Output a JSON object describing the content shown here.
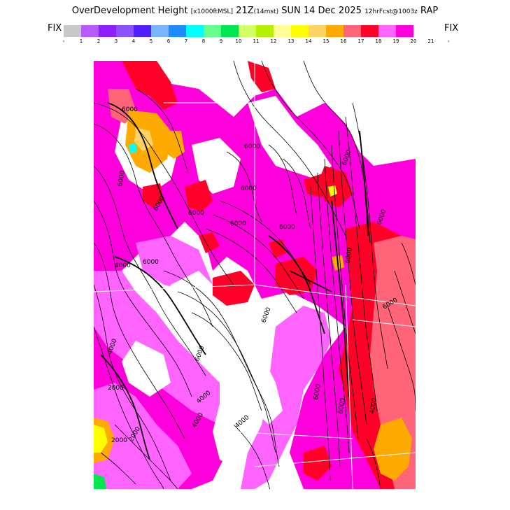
{
  "title": {
    "main": "OverDevelopment Height",
    "units": "[x1000ftMSL]",
    "time": "21Z",
    "local": "(14mst)",
    "date": "SUN 14 Dec 2025",
    "run": "12hrFcst@1003z",
    "model": "RAP"
  },
  "fix_left": "FIX",
  "fix_right": "FIX",
  "colorbar": {
    "colors": [
      "#c8c8c8",
      "#b45aff",
      "#8c1eff",
      "#8c50ff",
      "#501eff",
      "#78b4ff",
      "#1e8cff",
      "#00ffff",
      "#64ff8c",
      "#00e650",
      "#d2ff64",
      "#b4f000",
      "#ffff96",
      "#ffff00",
      "#ffd264",
      "#ffaa00",
      "#ff6478",
      "#ff0028",
      "#ff64ff",
      "#ff00dc"
    ],
    "tick_labels": [
      "‹",
      "1",
      "2",
      "3",
      "4",
      "5",
      "6",
      "7",
      "8",
      "9",
      "10",
      "11",
      "12",
      "13",
      "14",
      "15",
      "16",
      "17",
      "18",
      "19",
      "20",
      "21",
      "›"
    ]
  },
  "map": {
    "contour_labels": [
      "6000",
      "6000",
      "6000",
      "6000",
      "6000",
      "6000",
      "6000",
      "6000",
      "6000",
      "6000",
      "6000",
      "6000",
      "6000",
      "4000",
      "4000",
      "4000",
      "4000",
      "4000",
      "2000",
      "2000",
      "2000",
      "6000",
      "6000",
      "4000",
      "6000",
      "6000"
    ],
    "fill_colors": {
      "magenta": "#ff00dc",
      "pink": "#ff64ff",
      "red": "#ff0028",
      "salmon": "#ff6478",
      "orange": "#ffaa00",
      "lightorange": "#ffd264",
      "yellow": "#ffff00",
      "green": "#00e650",
      "cyan": "#00ffff"
    }
  }
}
